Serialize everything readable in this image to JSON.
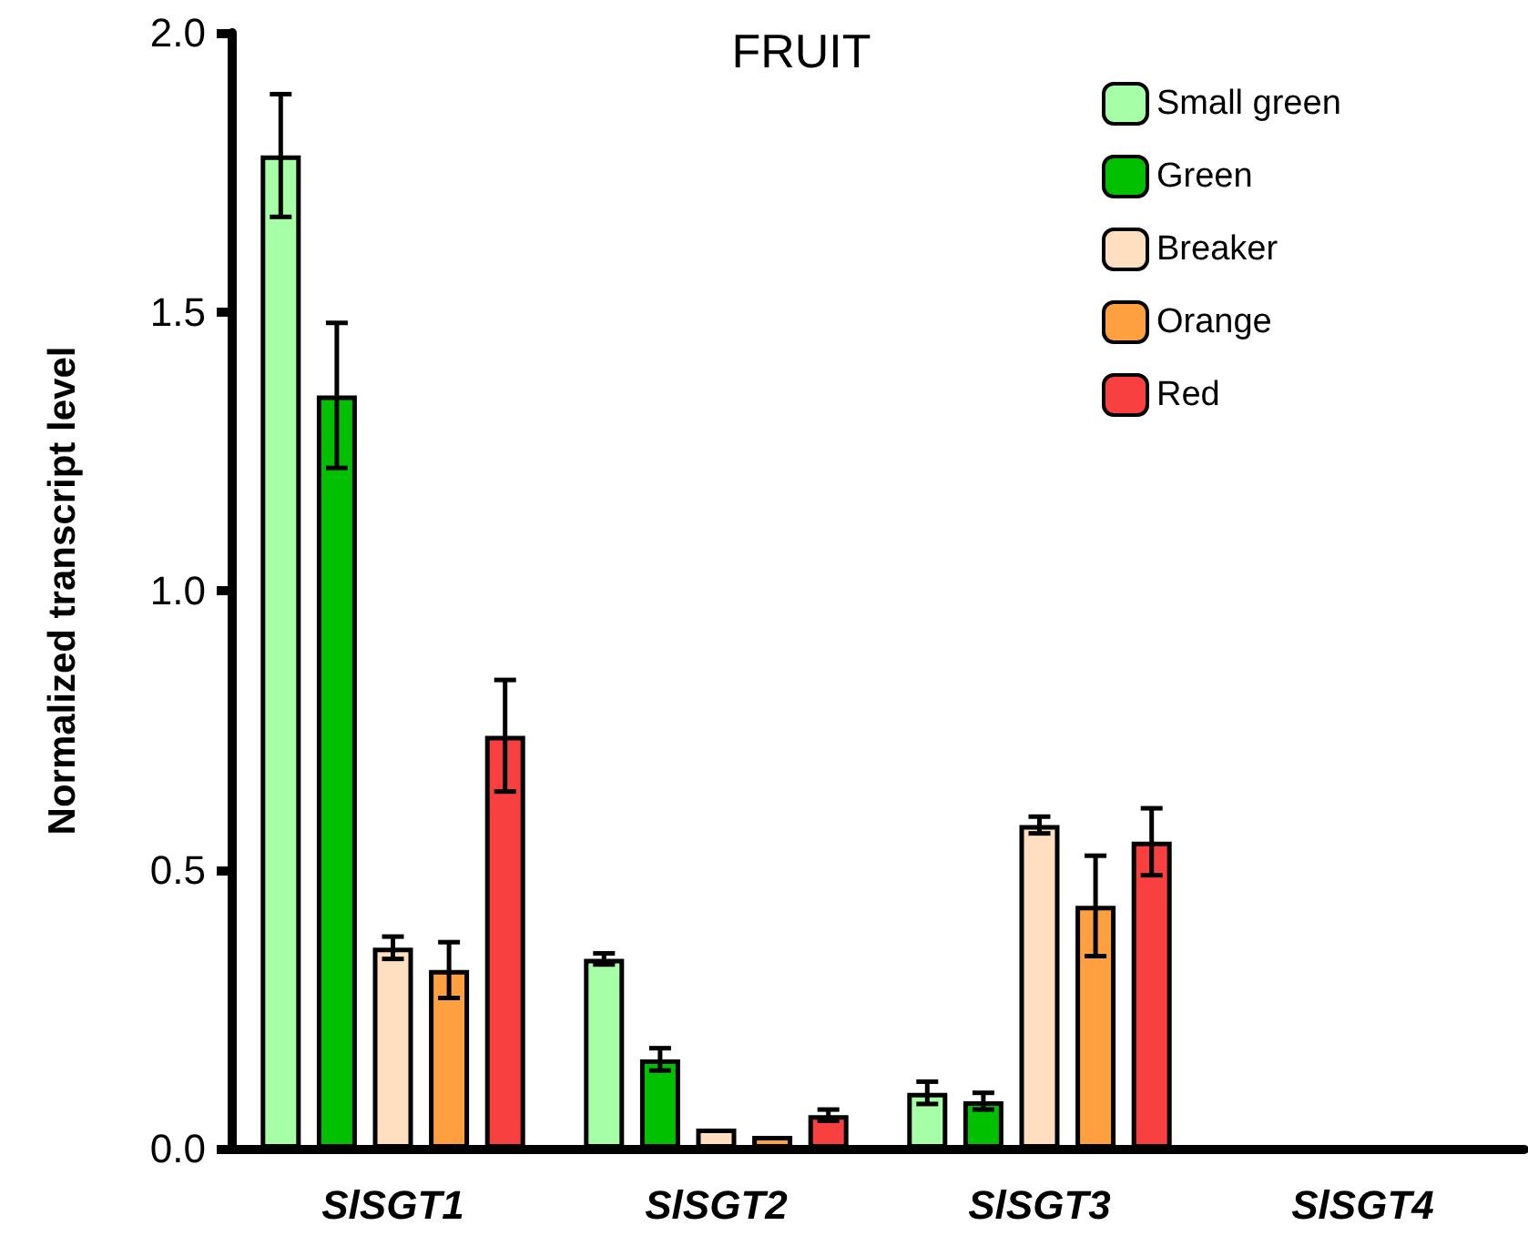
{
  "chart_data": {
    "type": "bar",
    "title": "FRUIT",
    "ylabel": "Normalized transcript level",
    "categories": [
      "SlSGT1",
      "SlSGT2",
      "SlSGT3",
      "SlSGT4"
    ],
    "series": [
      {
        "name": "Small green",
        "color": "#a6ffa6",
        "values": [
          1.78,
          0.34,
          0.1,
          null
        ],
        "errors": [
          0.11,
          0.01,
          0.02,
          null
        ]
      },
      {
        "name": "Green",
        "color": "#00c000",
        "values": [
          1.35,
          0.16,
          0.085,
          null
        ],
        "errors": [
          0.13,
          0.02,
          0.015,
          null
        ]
      },
      {
        "name": "Breaker",
        "color": "#ffdfc0",
        "values": [
          0.36,
          0.036,
          0.58,
          null
        ],
        "errors": [
          0.02,
          null,
          0.015,
          null
        ]
      },
      {
        "name": "Orange",
        "color": "#ffa040",
        "values": [
          0.32,
          0.023,
          0.435,
          null
        ],
        "errors": [
          0.05,
          null,
          0.09,
          null
        ]
      },
      {
        "name": "Red",
        "color": "#f84040",
        "values": [
          0.74,
          0.06,
          0.55,
          null
        ],
        "errors": [
          0.1,
          0.01,
          0.06,
          null
        ]
      }
    ],
    "ylim": [
      0,
      2.0
    ],
    "yticks": [
      {
        "value": 0,
        "label": "0.0"
      },
      {
        "value": 0.5,
        "label": "0.5"
      },
      {
        "value": 1,
        "label": "1.0"
      },
      {
        "value": 1.5,
        "label": "1.5"
      },
      {
        "value": 2,
        "label": "2.0"
      }
    ],
    "grid": false,
    "legend": "top right"
  }
}
